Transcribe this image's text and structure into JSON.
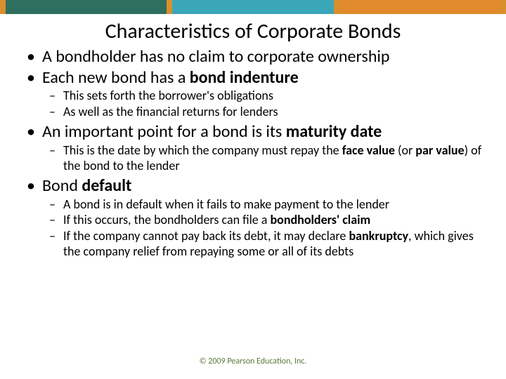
{
  "topbar": {
    "segments": [
      {
        "w": "thin",
        "color": "#d98f2e"
      },
      {
        "w": "wide",
        "color": "#2f6f5f"
      },
      {
        "w": "thin",
        "color": "#d98f2e"
      },
      {
        "w": "wide",
        "color": "#3aa7b8"
      },
      {
        "w": "thin",
        "color": "#d98f2e"
      },
      {
        "w": "wide",
        "color": "#e08a2c"
      },
      {
        "w": "thin",
        "color": "#d98f2e"
      }
    ]
  },
  "title": "Characteristics of Corporate Bonds",
  "bullets": {
    "b1": "A bondholder has no claim to corporate ownership",
    "b2_pre": "Each new bond has a ",
    "b2_bold": "bond indenture",
    "b2_sub1": "This sets forth the borrower's obligations",
    "b2_sub2": "As well as the financial returns for lenders",
    "b3_pre": "An important point for a bond is its ",
    "b3_bold": "maturity date",
    "b3_sub1_pre": "This is the date by which the company must repay the ",
    "b3_sub1_bold1": "face value",
    "b3_sub1_mid": " (or ",
    "b3_sub1_bold2": "par value",
    "b3_sub1_post": ") of the bond to the lender",
    "b4_pre": "Bond ",
    "b4_bold": "default",
    "b4_sub1": "A bond is in default when it fails to make payment to the lender",
    "b4_sub2_pre": "If this occurs, the bondholders can file a ",
    "b4_sub2_bold": "bondholders' claim",
    "b4_sub3_pre": "If the company cannot pay back its debt, it may declare ",
    "b4_sub3_bold": "bankruptcy",
    "b4_sub3_post": ", which gives the company relief from repaying some or all of its debts"
  },
  "footer": "© 2009 Pearson Education, Inc."
}
